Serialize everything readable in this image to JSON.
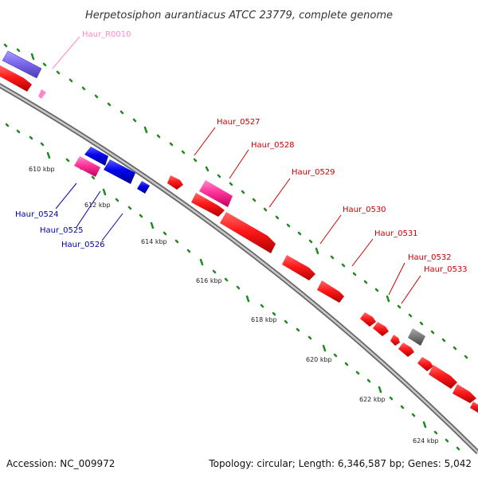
{
  "title": "Herpetosiphon aurantiacus ATCC 23779, complete genome",
  "footer": {
    "accession": "Accession: NC_009972",
    "summary": "Topology: circular; Length: 6,346,587 bp; Genes: 5,042"
  },
  "scale_labels": [
    "610 kbp",
    "612 kbp",
    "614 kbp",
    "616 kbp",
    "618 kbp",
    "620 kbp",
    "622 kbp",
    "624 kbp"
  ],
  "colors": {
    "forward_cds": "#ff0000",
    "reverse_cds": "#0000ee",
    "rna": "#ff3399",
    "other": "#7b68ee",
    "pseudo": "#777777",
    "forward_label": "#cc0000",
    "reverse_label": "#0000aa",
    "rna_label": "#ff88c8",
    "tick": "#1f8a1f",
    "backbone": "#999999"
  },
  "gene_labels": {
    "r0010": "Haur_R0010",
    "g0524": "Haur_0524",
    "g0525": "Haur_0525",
    "g0526": "Haur_0526",
    "g0527": "Haur_0527",
    "g0528": "Haur_0528",
    "g0529": "Haur_0529",
    "g0530": "Haur_0530",
    "g0531": "Haur_0531",
    "g0532": "Haur_0532",
    "g0533": "Haur_0533"
  }
}
